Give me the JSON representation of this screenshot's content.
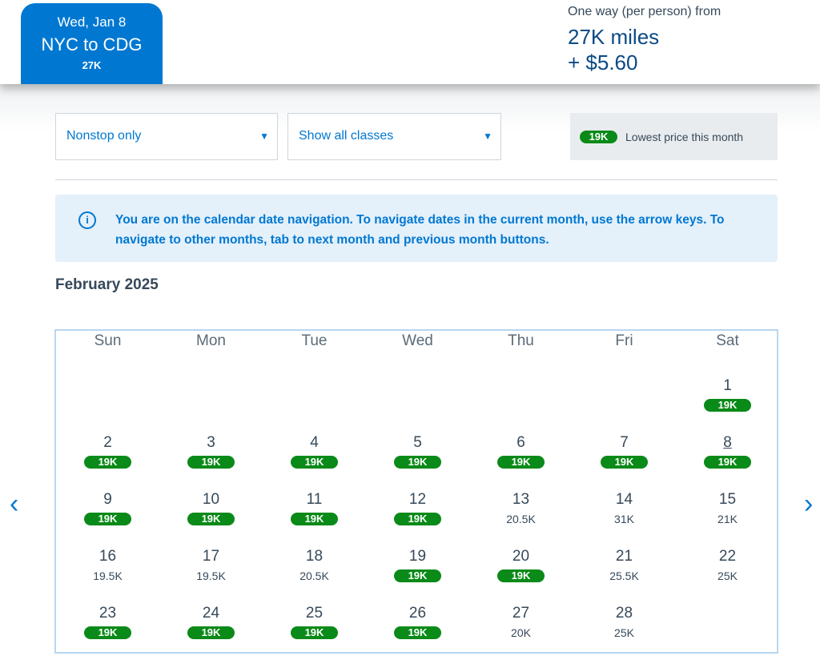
{
  "header": {
    "tab": {
      "date": "Wed, Jan 8",
      "route": "NYC to CDG",
      "price": "27K"
    },
    "fare_label": "One way (per person) from",
    "miles": "27K miles",
    "fees": "+ $5.60"
  },
  "filters": {
    "stops": "Nonstop only",
    "classes": "Show all classes"
  },
  "legend": {
    "badge": "19K",
    "label": "Lowest price this month",
    "color": "#0a8a18"
  },
  "info": {
    "icon": "info-icon",
    "text": "You are on the calendar date navigation. To navigate dates in the current month, use the arrow keys. To navigate to other months, tab to next month and previous month buttons."
  },
  "calendar": {
    "month": "February 2025",
    "weekdays": [
      "Sun",
      "Mon",
      "Tue",
      "Wed",
      "Thu",
      "Fri",
      "Sat"
    ],
    "first_weekday": 6,
    "selected_day": 8,
    "days": [
      {
        "d": "1",
        "p": "19K",
        "low": true
      },
      {
        "d": "2",
        "p": "19K",
        "low": true
      },
      {
        "d": "3",
        "p": "19K",
        "low": true
      },
      {
        "d": "4",
        "p": "19K",
        "low": true
      },
      {
        "d": "5",
        "p": "19K",
        "low": true
      },
      {
        "d": "6",
        "p": "19K",
        "low": true
      },
      {
        "d": "7",
        "p": "19K",
        "low": true
      },
      {
        "d": "8",
        "p": "19K",
        "low": true
      },
      {
        "d": "9",
        "p": "19K",
        "low": true
      },
      {
        "d": "10",
        "p": "19K",
        "low": true
      },
      {
        "d": "11",
        "p": "19K",
        "low": true
      },
      {
        "d": "12",
        "p": "19K",
        "low": true
      },
      {
        "d": "13",
        "p": "20.5K",
        "low": false
      },
      {
        "d": "14",
        "p": "31K",
        "low": false
      },
      {
        "d": "15",
        "p": "21K",
        "low": false
      },
      {
        "d": "16",
        "p": "19.5K",
        "low": false
      },
      {
        "d": "17",
        "p": "19.5K",
        "low": false
      },
      {
        "d": "18",
        "p": "20.5K",
        "low": false
      },
      {
        "d": "19",
        "p": "19K",
        "low": true
      },
      {
        "d": "20",
        "p": "19K",
        "low": true
      },
      {
        "d": "21",
        "p": "25.5K",
        "low": false
      },
      {
        "d": "22",
        "p": "25K",
        "low": false
      },
      {
        "d": "23",
        "p": "19K",
        "low": true
      },
      {
        "d": "24",
        "p": "19K",
        "low": true
      },
      {
        "d": "25",
        "p": "19K",
        "low": true
      },
      {
        "d": "26",
        "p": "19K",
        "low": true
      },
      {
        "d": "27",
        "p": "20K",
        "low": false
      },
      {
        "d": "28",
        "p": "25K",
        "low": false
      }
    ]
  },
  "nav": {
    "prev": "‹",
    "next": "›"
  }
}
